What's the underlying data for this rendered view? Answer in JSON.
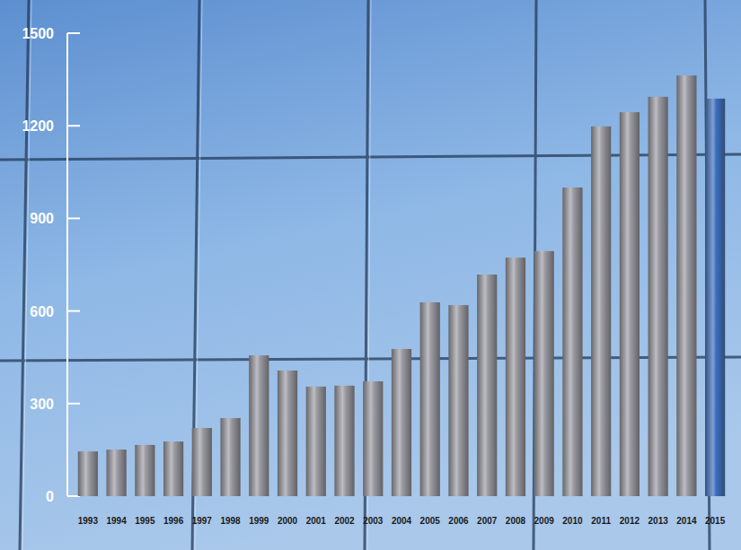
{
  "chart_data": {
    "type": "bar",
    "categories": [
      "1993",
      "1994",
      "1995",
      "1996",
      "1997",
      "1998",
      "1999",
      "2000",
      "2001",
      "2002",
      "2003",
      "2004",
      "2005",
      "2006",
      "2007",
      "2008",
      "2009",
      "2010",
      "2011",
      "2012",
      "2013",
      "2014",
      "2015"
    ],
    "values": [
      145,
      151,
      166,
      177,
      221,
      253,
      456,
      407,
      355,
      358,
      372,
      477,
      628,
      619,
      718,
      773,
      794,
      1000,
      1198,
      1244,
      1294,
      1363,
      1288
    ],
    "colors": [
      "#9a9aa2",
      "#9a9aa2",
      "#9a9aa2",
      "#9a9aa2",
      "#9a9aa2",
      "#9a9aa2",
      "#9a9aa2",
      "#9a9aa2",
      "#9a9aa2",
      "#9a9aa2",
      "#9a9aa2",
      "#9a9aa2",
      "#9a9aa2",
      "#9a9aa2",
      "#9a9aa2",
      "#9a9aa2",
      "#9a9aa2",
      "#9a9aa2",
      "#9a9aa2",
      "#9a9aa2",
      "#9a9aa2",
      "#9a9aa2",
      "#3a6fc0"
    ],
    "ylim": [
      0,
      1500
    ],
    "yticks": [
      0,
      300,
      600,
      900,
      1200,
      1500
    ],
    "grid": false
  }
}
